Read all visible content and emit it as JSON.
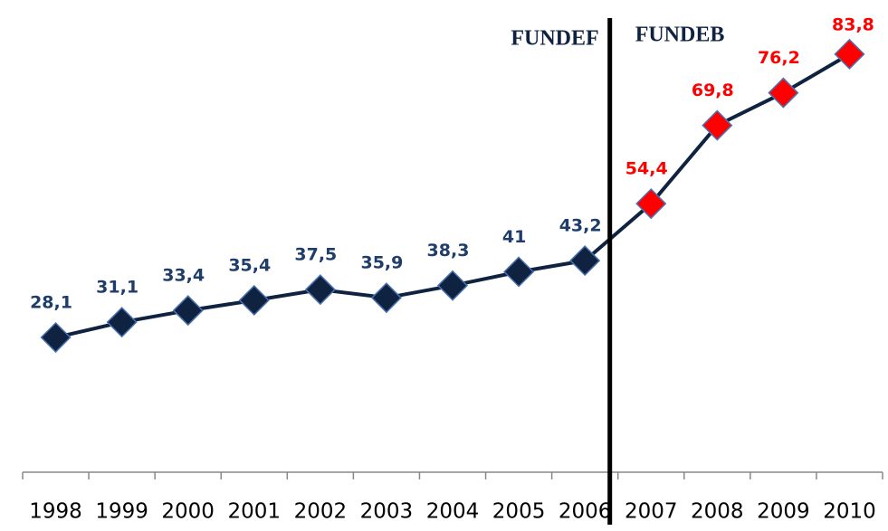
{
  "chart_data": {
    "type": "line",
    "categories": [
      "1998",
      "1999",
      "2000",
      "2001",
      "2002",
      "2003",
      "2004",
      "2005",
      "2006",
      "2007",
      "2008",
      "2009",
      "2010"
    ],
    "series": [
      {
        "color": "#0f2340",
        "values": [
          28.1,
          31.1,
          33.4,
          35.4,
          37.5,
          35.9,
          38.3,
          41,
          43.2,
          54.4,
          69.8,
          76.2,
          83.8
        ],
        "value_labels": [
          "28,1",
          "31,1",
          "33,4",
          "35,4",
          "37,5",
          "35,9",
          "38,3",
          "41",
          "43,2",
          "54,4",
          "69,8",
          "76,2",
          "83,8"
        ],
        "point_colors": [
          "#0f2340",
          "#0f2340",
          "#0f2340",
          "#0f2340",
          "#0f2340",
          "#0f2340",
          "#0f2340",
          "#0f2340",
          "#0f2340",
          "#ff0000",
          "#ff0000",
          "#ff0000",
          "#ff0000"
        ],
        "label_colors": [
          "#1f3d6b",
          "#1f3d6b",
          "#1f3d6b",
          "#1f3d6b",
          "#1f3d6b",
          "#1f3d6b",
          "#1f3d6b",
          "#1f3d6b",
          "#1f3d6b",
          "#ff0000",
          "#ff0000",
          "#ff0000",
          "#ff0000"
        ]
      }
    ],
    "annotations": [
      "FUNDEF",
      "FUNDEB"
    ],
    "ylim": [
      0,
      90
    ]
  }
}
